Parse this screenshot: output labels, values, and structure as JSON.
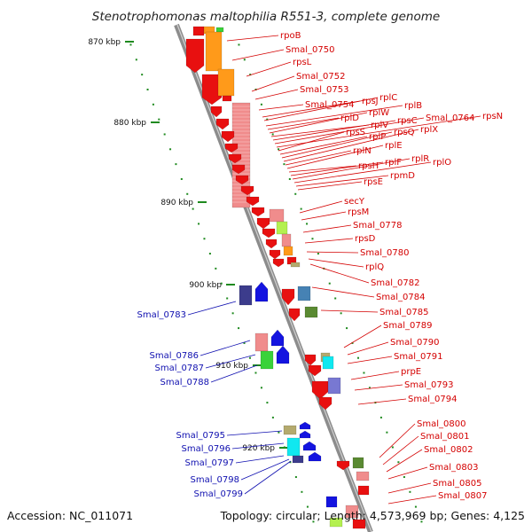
{
  "title": "Stenotrophomonas maltophilia R551-3, complete genome",
  "footer": {
    "accession": "Accession: NC_011071",
    "summary": "Topology: circular; Length: 4,573,969 bp; Genes: 4,125"
  },
  "ticks": [
    "870 kbp",
    "880 kbp",
    "890 kbp",
    "900 kbp",
    "910 kbp",
    "920 kbp"
  ],
  "labels_red": [
    "rpoB",
    "Smal_0750",
    "rpsL",
    "Smal_0752",
    "Smal_0753",
    "Smal_0754",
    "rpsJ",
    "rplC",
    "rplB",
    "rplD",
    "rplW",
    "rplV",
    "rpsC",
    "Smal_0764",
    "rpsN",
    "rpsS",
    "rplP",
    "rpsQ",
    "rplX",
    "rplN",
    "rplE",
    "rpsH",
    "rplF",
    "rplR",
    "rplO",
    "rpmD",
    "rpsE",
    "secY",
    "rpsM",
    "Smal_0778",
    "rpsD",
    "Smal_0780",
    "rplQ",
    "Smal_0782",
    "Smal_0784",
    "Smal_0785",
    "Smal_0789",
    "Smal_0790",
    "Smal_0791",
    "prpE",
    "Smal_0793",
    "Smal_0794",
    "Smal_0800",
    "Smal_0801",
    "Smal_0802",
    "Smal_0803",
    "Smal_0805",
    "Smal_0807"
  ],
  "labels_blue": [
    "Smal_0783",
    "Smal_0786",
    "Smal_0787",
    "Smal_0788",
    "Smal_0795",
    "Smal_0796",
    "Smal_0797",
    "Smal_0798",
    "Smal_0799"
  ],
  "colors": {
    "backbone": "#8c8c8c",
    "tick": "#1f8a1f",
    "gene_red": "#e81010",
    "gene_pink": "#f08c8c",
    "gene_orange": "#ff9a1a",
    "gene_blue": "#1414e0",
    "gene_navy": "#3c3c8c",
    "gene_cyan": "#10e8f0",
    "gene_green": "#3ad23a",
    "gene_lime": "#b4f050",
    "gene_olive": "#5a8a32",
    "gene_tan": "#b4aa6e",
    "gene_purple": "#7878d2",
    "gene_steel": "#4682b4",
    "label_red": "#d40000",
    "label_blue": "#1010b0"
  }
}
